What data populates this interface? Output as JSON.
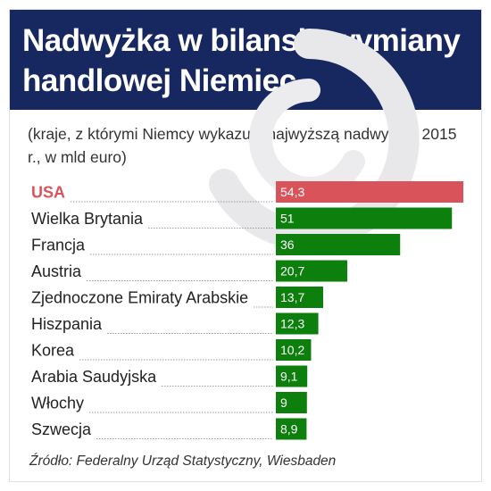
{
  "header": {
    "title": "Nadwyżka w bilansie wymiany handlowej Niemiec",
    "background_color": "#17275f"
  },
  "subtitle": "(kraje, z którymi Niemcy wykazują najwyższą nadwyżkę, 2015 r., w mld euro)",
  "source": "Źródło: Federalny Urząd Statystyczny, Wiesbaden",
  "chart_data": {
    "type": "bar",
    "orientation": "horizontal",
    "categories": [
      "USA",
      "Wielka Brytania",
      "Francja",
      "Austria",
      "Zjednoczone Emiraty Arabskie",
      "Hiszpania",
      "Korea",
      "Arabia Saudyjska",
      "Włochy",
      "Szwecja"
    ],
    "values": [
      54.3,
      51,
      36,
      20.7,
      13.7,
      12.3,
      10.2,
      9.1,
      9,
      8.9
    ],
    "value_labels": [
      "54,3",
      "51",
      "36",
      "20,7",
      "13,7",
      "12,3",
      "10,2",
      "9,1",
      "9",
      "8,9"
    ],
    "highlight_index": 0,
    "colors": {
      "highlight_bar": "#d9545a",
      "highlight_label": "#d9545a",
      "bar": "#0d7f0d",
      "label": "#222222",
      "leader": "#9a9a9a"
    },
    "xlim": [
      0,
      54.3
    ],
    "grid": false,
    "legend": "none"
  }
}
